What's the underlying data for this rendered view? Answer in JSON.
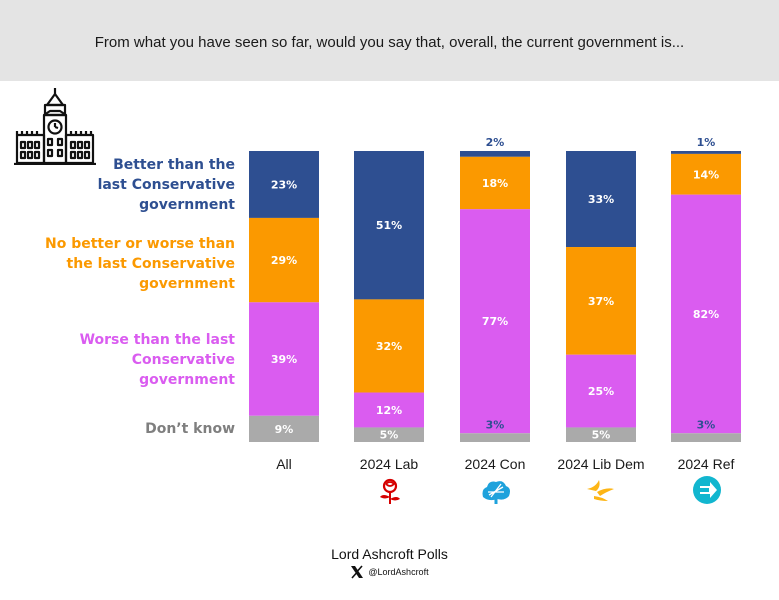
{
  "header": {
    "question": "From what you have seen so far, would you say that, overall, the current government is..."
  },
  "legend": [
    {
      "label_line1": "Better than the",
      "label_line2": "last Conservative",
      "label_line3": "government"
    },
    {
      "label_line1": "No better or worse than",
      "label_line2": "the last Conservative",
      "label_line3": "government"
    },
    {
      "label_line1": "Worse than the last",
      "label_line2": "Conservative",
      "label_line3": "government"
    },
    {
      "label_line1": "Don’t know"
    }
  ],
  "footer": {
    "title": "Lord Ashcroft Polls",
    "handle": "@LordAshcroft"
  },
  "icons": {
    "landmark": "big-ben-parliament-icon",
    "x_logo": "x-logo-icon",
    "party_logos": [
      "labour-rose-icon",
      "conservative-tree-icon",
      "lib-dem-bird-icon",
      "reform-arrow-icon"
    ]
  },
  "chart_data": {
    "type": "bar",
    "stacked": true,
    "percent_stacked": true,
    "categories": [
      "All",
      "2024 Lab",
      "2024 Con",
      "2024 Lib Dem",
      "2024 Ref"
    ],
    "series": [
      {
        "name": "Better than the last Conservative government",
        "color": "#2e4f91",
        "values": [
          23,
          51,
          2,
          33,
          1
        ]
      },
      {
        "name": "No better or worse than the last Conservative government",
        "color": "#fb9900",
        "values": [
          29,
          32,
          18,
          37,
          14
        ]
      },
      {
        "name": "Worse than the last Conservative government",
        "color": "#da5cf0",
        "values": [
          39,
          12,
          77,
          25,
          82
        ]
      },
      {
        "name": "Don’t know",
        "color": "#aaaaaa",
        "values": [
          9,
          5,
          3,
          5,
          3
        ]
      }
    ],
    "value_suffix": "%",
    "legend_position": "left",
    "grid": false
  }
}
